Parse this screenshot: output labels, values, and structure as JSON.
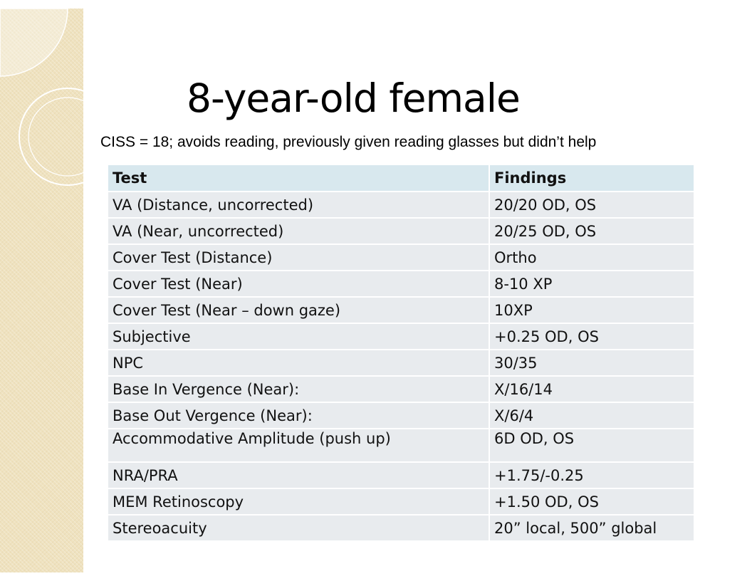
{
  "slide": {
    "title": "8-year-old female",
    "subtitle": "CISS = 18; avoids reading, previously given reading glasses but didn’t help"
  },
  "table": {
    "headers": {
      "test": "Test",
      "findings": "Findings"
    },
    "rows": [
      {
        "test": "VA (Distance, uncorrected)",
        "finding": "20/20 OD, OS"
      },
      {
        "test": "VA (Near, uncorrected)",
        "finding": "20/25 OD, OS"
      },
      {
        "test": "Cover Test (Distance)",
        "finding": "Ortho"
      },
      {
        "test": "Cover Test (Near)",
        "finding": "8-10 XP"
      },
      {
        "test": "Cover Test (Near – down gaze)",
        "finding": "10XP"
      },
      {
        "test": "Subjective",
        "finding": "+0.25 OD, OS"
      },
      {
        "test": "NPC",
        "finding": "30/35"
      },
      {
        "test": "Base In Vergence (Near):",
        "finding": "X/16/14"
      },
      {
        "test": "Base Out Vergence (Near):",
        "finding": "X/6/4"
      },
      {
        "test": "Accommodative Amplitude (push up)",
        "finding": "6D OD, OS"
      },
      {
        "test": "NRA/PRA",
        "finding": "+1.75/-0.25"
      },
      {
        "test": "MEM Retinoscopy",
        "finding": "+1.50 OD, OS"
      },
      {
        "test": "Stereoacuity",
        "finding": "20” local, 500” global"
      }
    ]
  },
  "theme": {
    "band_color": "#efe2bf",
    "header_fill": "#d8e8ee",
    "cell_fill": "#e8ebee"
  }
}
